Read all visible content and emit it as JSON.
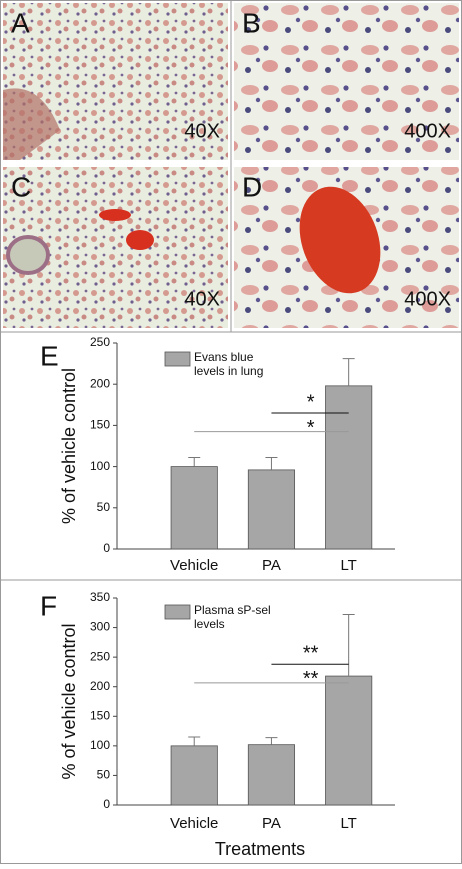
{
  "panels": [
    {
      "label": "A",
      "magnification": "40X"
    },
    {
      "label": "B",
      "magnification": "400X"
    },
    {
      "label": "C",
      "magnification": "40X"
    },
    {
      "label": "D",
      "magnification": "400X"
    }
  ],
  "chart_data": [
    {
      "type": "bar",
      "panel_label": "E",
      "y_label": "% of vehicle control",
      "categories": [
        "Vehicle",
        "PA",
        "LT"
      ],
      "series": [
        {
          "name": "Evans blue levels in lung",
          "color": "#a6a6a6",
          "values": [
            100,
            96,
            198
          ],
          "errors": [
            11,
            15,
            33
          ]
        }
      ],
      "ylim": [
        0,
        250
      ],
      "yticks": [
        0,
        50,
        100,
        150,
        200,
        250
      ],
      "annotations": [
        "*",
        "*"
      ]
    },
    {
      "type": "bar",
      "panel_label": "F",
      "y_label": "% of vehicle control",
      "x_label": "Treatments",
      "categories": [
        "Vehicle",
        "PA",
        "LT"
      ],
      "series": [
        {
          "name": "Plasma sP-sel levels",
          "color": "#a6a6a6",
          "values": [
            100,
            102,
            218
          ],
          "errors": [
            15,
            12,
            104
          ]
        }
      ],
      "ylim": [
        0,
        350
      ],
      "yticks": [
        0,
        50,
        100,
        150,
        200,
        250,
        300,
        350
      ],
      "annotations": [
        "**",
        "**"
      ]
    }
  ]
}
